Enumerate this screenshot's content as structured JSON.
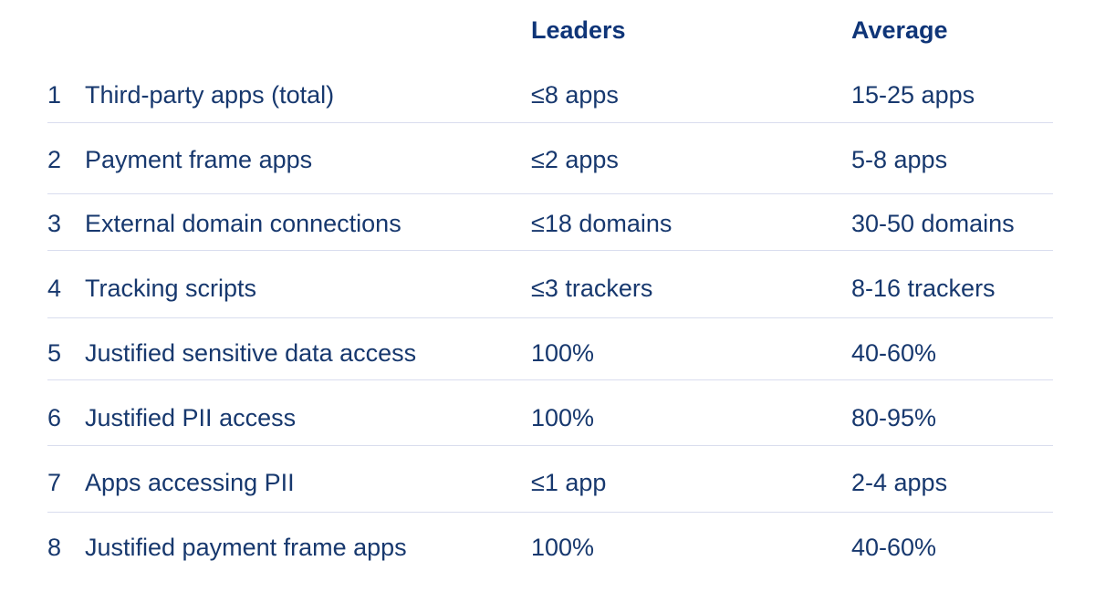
{
  "table": {
    "header": [
      "Leaders",
      "Average"
    ],
    "rows": [
      [
        1,
        "Third-party apps (total)",
        "≤8 apps",
        "15-25 apps"
      ],
      [
        2,
        "Payment frame apps",
        "≤2 apps",
        "5-8 apps"
      ],
      [
        3,
        "External domain connections",
        "≤18 domains",
        "30-50 domains"
      ],
      [
        4,
        "Tracking scripts",
        "≤3 trackers",
        "8-16 trackers"
      ],
      [
        5,
        "Justified sensitive data access",
        "100%",
        "40-60%"
      ],
      [
        6,
        "Justified PII access",
        "100%",
        "80-95%"
      ],
      [
        7,
        "Apps accessing PII",
        "≤1 app",
        "2-4 apps"
      ],
      [
        8,
        "Justified payment frame apps",
        "100%",
        "40-60%"
      ]
    ]
  }
}
